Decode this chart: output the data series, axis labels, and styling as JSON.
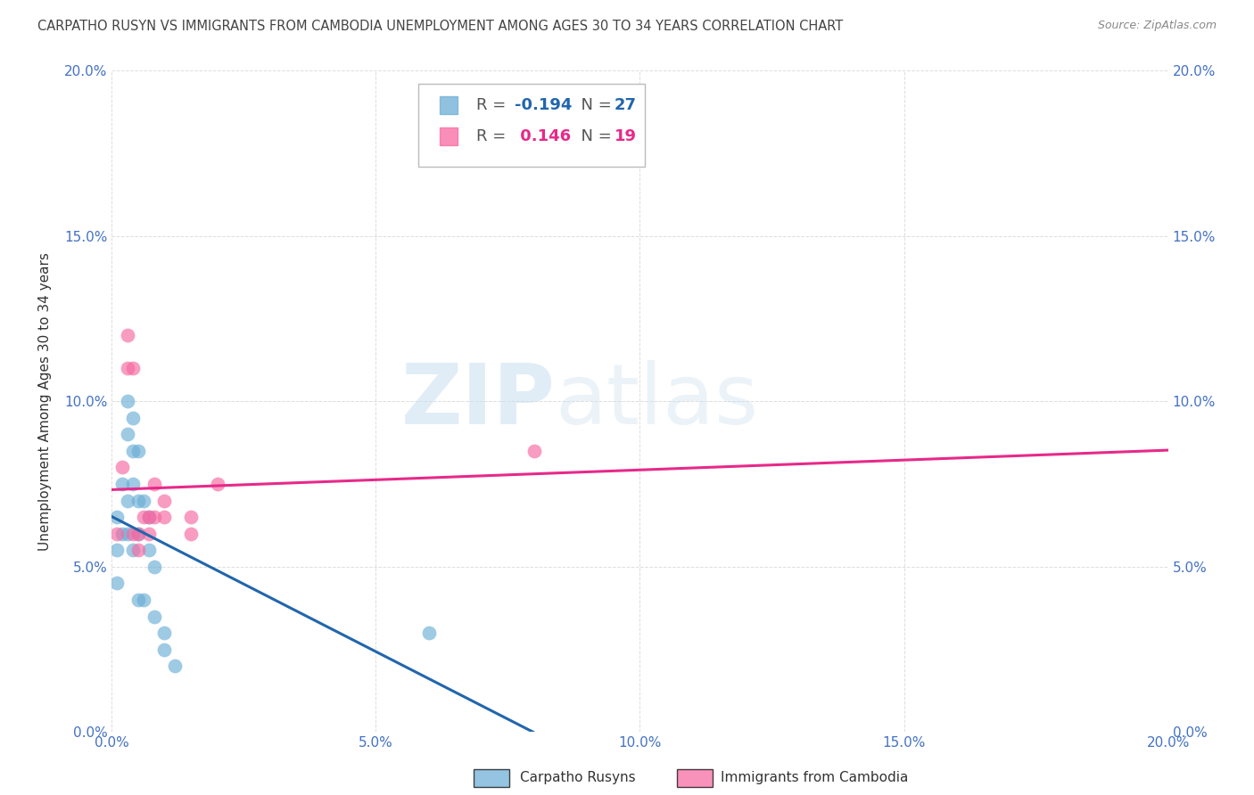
{
  "title": "CARPATHO RUSYN VS IMMIGRANTS FROM CAMBODIA UNEMPLOYMENT AMONG AGES 30 TO 34 YEARS CORRELATION CHART",
  "source": "Source: ZipAtlas.com",
  "ylabel": "Unemployment Among Ages 30 to 34 years",
  "xlim": [
    0.0,
    0.2
  ],
  "ylim": [
    0.0,
    0.2
  ],
  "xticks": [
    0.0,
    0.05,
    0.1,
    0.15,
    0.2
  ],
  "yticks": [
    0.0,
    0.05,
    0.1,
    0.15,
    0.2
  ],
  "blue_label": "Carpatho Rusyns",
  "pink_label": "Immigrants from Cambodia",
  "blue_R": -0.194,
  "blue_N": 27,
  "pink_R": 0.146,
  "pink_N": 19,
  "blue_color": "#6baed6",
  "pink_color": "#f768a1",
  "blue_line_color": "#2166ac",
  "pink_line_color": "#e7298a",
  "blue_scatter_x": [
    0.001,
    0.001,
    0.001,
    0.002,
    0.002,
    0.003,
    0.003,
    0.003,
    0.003,
    0.004,
    0.004,
    0.004,
    0.004,
    0.005,
    0.005,
    0.005,
    0.005,
    0.006,
    0.006,
    0.007,
    0.007,
    0.008,
    0.008,
    0.01,
    0.01,
    0.012,
    0.06
  ],
  "blue_scatter_y": [
    0.055,
    0.065,
    0.045,
    0.06,
    0.075,
    0.06,
    0.07,
    0.09,
    0.1,
    0.055,
    0.075,
    0.085,
    0.095,
    0.04,
    0.06,
    0.07,
    0.085,
    0.04,
    0.07,
    0.065,
    0.055,
    0.035,
    0.05,
    0.025,
    0.03,
    0.02,
    0.03
  ],
  "pink_scatter_x": [
    0.001,
    0.002,
    0.003,
    0.003,
    0.004,
    0.004,
    0.005,
    0.005,
    0.006,
    0.007,
    0.007,
    0.008,
    0.008,
    0.01,
    0.01,
    0.015,
    0.015,
    0.02,
    0.08
  ],
  "pink_scatter_y": [
    0.06,
    0.08,
    0.11,
    0.12,
    0.06,
    0.11,
    0.06,
    0.055,
    0.065,
    0.06,
    0.065,
    0.065,
    0.075,
    0.065,
    0.07,
    0.065,
    0.06,
    0.075,
    0.085
  ],
  "watermark_zip": "ZIP",
  "watermark_atlas": "atlas",
  "background_color": "#ffffff",
  "grid_color": "#dddddd",
  "tick_color": "#4472c4",
  "title_color": "#444444",
  "source_color": "#888888",
  "label_color": "#333333"
}
